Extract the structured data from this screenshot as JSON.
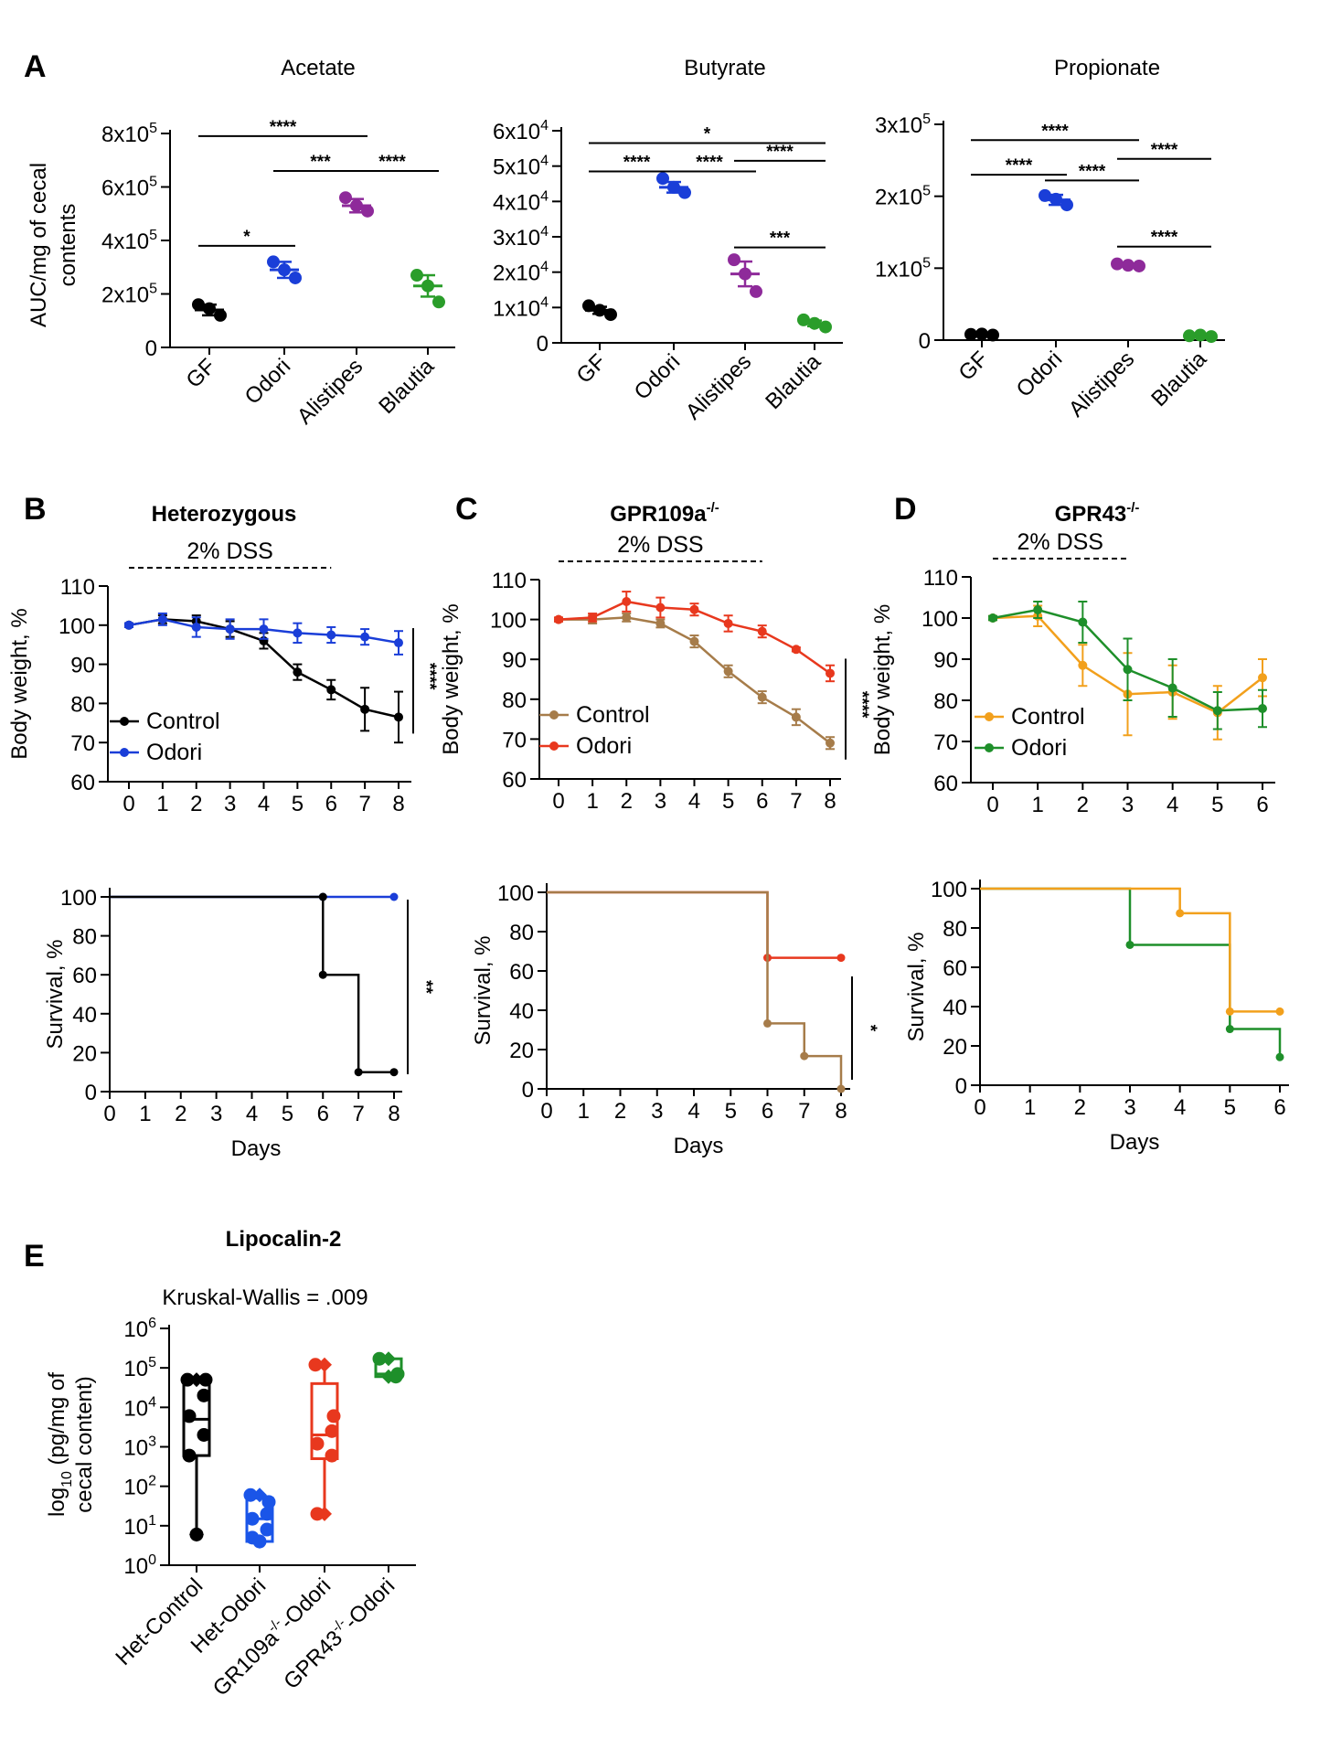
{
  "panels": {
    "A": {
      "letter": "A",
      "ylabel_lines": [
        "AUC/mg of cecal",
        "contents"
      ]
    },
    "B": {
      "letter": "B",
      "title_base": "Heterozygous",
      "title_sup": ""
    },
    "C": {
      "letter": "C",
      "title_base": "GPR109a",
      "title_sup": "-/-"
    },
    "D": {
      "letter": "D",
      "title_base": "GPR43",
      "title_sup": "-/-"
    },
    "E": {
      "letter": "E",
      "title": "Lipocalin-2",
      "subtitle": "Kruskal-Wallis = .009"
    }
  },
  "colors": {
    "gf": "#000000",
    "odori": "#1a3ed8",
    "alistipes": "#8e2a9a",
    "blautia": "#2a9d2a",
    "control_b": "#000000",
    "control_c": "#a67c4a",
    "odori_c": "#e8381e",
    "control_d": "#f2a01c",
    "odori_d": "#1e8f2a",
    "e_het_odori": "#1a55e8"
  },
  "chart_data": [
    {
      "id": "A-acetate",
      "type": "scatter",
      "title": "Acetate",
      "ylabel": "AUC/mg of cecal contents",
      "categories": [
        "GF",
        "Odori",
        "Alistipes",
        "Blautia"
      ],
      "ylim": [
        0,
        800000
      ],
      "yticks": [
        {
          "value": 0,
          "base": "0",
          "exp": ""
        },
        {
          "value": 200000,
          "base": "2x10",
          "exp": "5"
        },
        {
          "value": 400000,
          "base": "4x10",
          "exp": "5"
        },
        {
          "value": 600000,
          "base": "6x10",
          "exp": "5"
        },
        {
          "value": 800000,
          "base": "8x10",
          "exp": "5"
        }
      ],
      "points": [
        [
          160000,
          120000,
          145000
        ],
        [
          320000,
          260000,
          290000
        ],
        [
          560000,
          510000,
          530000
        ],
        [
          270000,
          170000,
          230000
        ]
      ],
      "means": [
        140000,
        290000,
        530000,
        230000
      ],
      "errors": [
        20000,
        30000,
        25000,
        40000
      ],
      "sig": [
        {
          "i": 0,
          "j": 2,
          "y": 790000,
          "label": "****"
        },
        {
          "i": 1,
          "j": 2,
          "y": 660000,
          "label": "***"
        },
        {
          "i": 2,
          "j": 3,
          "y": 660000,
          "label": "****"
        },
        {
          "i": 0,
          "j": 1,
          "y": 380000,
          "label": "*"
        }
      ]
    },
    {
      "id": "A-butyrate",
      "type": "scatter",
      "title": "Butyrate",
      "categories": [
        "GF",
        "Odori",
        "Alistipes",
        "Blautia"
      ],
      "ylim": [
        0,
        60000
      ],
      "yticks": [
        {
          "value": 0,
          "base": "0",
          "exp": ""
        },
        {
          "value": 10000,
          "base": "1x10",
          "exp": "4"
        },
        {
          "value": 20000,
          "base": "2x10",
          "exp": "4"
        },
        {
          "value": 30000,
          "base": "3x10",
          "exp": "4"
        },
        {
          "value": 40000,
          "base": "4x10",
          "exp": "4"
        },
        {
          "value": 50000,
          "base": "5x10",
          "exp": "4"
        },
        {
          "value": 60000,
          "base": "6x10",
          "exp": "4"
        }
      ],
      "points": [
        [
          10500,
          8000,
          9200
        ],
        [
          46500,
          42500,
          44000
        ],
        [
          23500,
          14500,
          19500
        ],
        [
          6500,
          4500,
          5500
        ]
      ],
      "means": [
        9200,
        44000,
        19500,
        5500
      ],
      "errors": [
        1000,
        1500,
        3500,
        800
      ],
      "sig": [
        {
          "i": 0,
          "j": 3,
          "y": 56500,
          "label": "*"
        },
        {
          "i": 2,
          "j": 3,
          "y": 51500,
          "label": "****"
        },
        {
          "i": 0,
          "j": 1,
          "y": 48500,
          "label": "****"
        },
        {
          "i": 1,
          "j": 2,
          "y": 48500,
          "label": "****"
        },
        {
          "i": 2,
          "j": 3,
          "y": 27000,
          "label": "***"
        }
      ]
    },
    {
      "id": "A-propionate",
      "type": "scatter",
      "title": "Propionate",
      "categories": [
        "GF",
        "Odori",
        "Alistipes",
        "Blautia"
      ],
      "ylim": [
        0,
        300000
      ],
      "yticks": [
        {
          "value": 0,
          "base": "0",
          "exp": ""
        },
        {
          "value": 100000,
          "base": "1x10",
          "exp": "5"
        },
        {
          "value": 200000,
          "base": "2x10",
          "exp": "5"
        },
        {
          "value": 300000,
          "base": "3x10",
          "exp": "5"
        }
      ],
      "points": [
        [
          8000,
          7000,
          8500
        ],
        [
          201000,
          188000,
          196000
        ],
        [
          106000,
          103000,
          104000
        ],
        [
          6000,
          5000,
          7000
        ]
      ],
      "means": [
        8000,
        195000,
        104000,
        6000
      ],
      "errors": [
        1000,
        7000,
        2000,
        1000
      ],
      "sig": [
        {
          "i": 0,
          "j": 2,
          "y": 278000,
          "label": "****"
        },
        {
          "i": 2,
          "j": 3,
          "y": 252000,
          "label": "****"
        },
        {
          "i": 0,
          "j": 1,
          "y": 230000,
          "label": "****"
        },
        {
          "i": 1,
          "j": 2,
          "y": 222000,
          "label": "****"
        },
        {
          "i": 2,
          "j": 3,
          "y": 130000,
          "label": "****"
        }
      ]
    },
    {
      "id": "B-weight",
      "type": "line",
      "xlabel": "",
      "ylabel": "Body weight, %",
      "x": [
        0,
        1,
        2,
        3,
        4,
        5,
        6,
        7,
        8
      ],
      "ylim": [
        60,
        110
      ],
      "yticks": [
        60,
        70,
        80,
        90,
        100,
        110
      ],
      "xticks": [
        "0",
        "1",
        "2",
        "3",
        "4",
        "5",
        "6",
        "7",
        "8"
      ],
      "dss_label": "2% DSS",
      "dss_range": [
        0,
        6
      ],
      "sig_label": "****",
      "series": [
        {
          "name": "Control",
          "values": [
            100,
            101.5,
            101,
            99,
            96,
            88,
            83.5,
            78.5,
            76.5
          ],
          "err": [
            0.5,
            1,
            1.5,
            2,
            2,
            2,
            2.5,
            5.5,
            6.5
          ]
        },
        {
          "name": "Odori",
          "values": [
            100,
            101.5,
            99.5,
            99,
            99,
            98,
            97.5,
            97,
            95.5
          ],
          "err": [
            0.5,
            1.5,
            2.5,
            2.5,
            2.5,
            2.5,
            2,
            2,
            3
          ]
        }
      ]
    },
    {
      "id": "C-weight",
      "type": "line",
      "xlabel": "",
      "ylabel": "Body weight, %",
      "x": [
        0,
        1,
        2,
        3,
        4,
        5,
        6,
        7,
        8
      ],
      "ylim": [
        60,
        110
      ],
      "yticks": [
        60,
        70,
        80,
        90,
        100,
        110
      ],
      "xticks": [
        "0",
        "1",
        "2",
        "3",
        "4",
        "5",
        "6",
        "7",
        "8"
      ],
      "dss_label": "2% DSS",
      "dss_range": [
        0,
        6
      ],
      "sig_label": "****",
      "series": [
        {
          "name": "Control",
          "values": [
            100,
            100,
            100.5,
            99,
            94.5,
            87,
            80.5,
            75.5,
            69
          ],
          "err": [
            0.5,
            1,
            1,
            1,
            1.5,
            1.5,
            1.5,
            2,
            1.5
          ]
        },
        {
          "name": "Odori",
          "values": [
            100,
            100.5,
            104.5,
            103,
            102.5,
            99,
            97,
            92.5,
            86.5
          ],
          "err": [
            0.5,
            1,
            2.5,
            2.5,
            1.5,
            2,
            1.5,
            0.5,
            2
          ]
        }
      ]
    },
    {
      "id": "D-weight",
      "type": "line",
      "xlabel": "",
      "ylabel": "Body weight, %",
      "x": [
        0,
        1,
        2,
        3,
        4,
        5,
        6
      ],
      "ylim": [
        60,
        110
      ],
      "yticks": [
        60,
        70,
        80,
        90,
        100,
        110
      ],
      "xticks": [
        "0",
        "1",
        "2",
        "3",
        "4",
        "5",
        "6"
      ],
      "dss_label": "2% DSS",
      "dss_range": [
        0,
        3
      ],
      "sig_label": "",
      "series": [
        {
          "name": "Control",
          "values": [
            100,
            100.5,
            88.5,
            81.5,
            82,
            77,
            85.5
          ],
          "err": [
            0.5,
            2.5,
            5,
            10,
            6.5,
            6.5,
            4.5
          ]
        },
        {
          "name": "Odori",
          "values": [
            100,
            102,
            99,
            87.5,
            83,
            77.5,
            78
          ],
          "err": [
            0.5,
            2,
            5,
            7.5,
            7,
            4.5,
            4.5
          ]
        }
      ]
    },
    {
      "id": "B-survival",
      "type": "line",
      "xlabel": "Days",
      "ylabel": "Survival, %",
      "xlim": [
        0,
        8
      ],
      "ylim": [
        0,
        100
      ],
      "yticks": [
        0,
        20,
        40,
        60,
        80,
        100
      ],
      "xticks": [
        "0",
        "1",
        "2",
        "3",
        "4",
        "5",
        "6",
        "7",
        "8"
      ],
      "sig_label": "**",
      "series": [
        {
          "name": "Control",
          "steps": [
            [
              0,
              100
            ],
            [
              6,
              60
            ],
            [
              7,
              10
            ],
            [
              8,
              10
            ]
          ],
          "markers": [
            [
              6,
              100
            ],
            [
              6,
              60
            ],
            [
              7,
              10
            ],
            [
              8,
              10
            ]
          ]
        },
        {
          "name": "Odori",
          "steps": [
            [
              0,
              100
            ],
            [
              8,
              100
            ]
          ],
          "markers": [
            [
              6,
              100
            ],
            [
              8,
              100
            ]
          ]
        }
      ]
    },
    {
      "id": "C-survival",
      "type": "line",
      "xlabel": "Days",
      "ylabel": "Survival, %",
      "xlim": [
        0,
        8
      ],
      "ylim": [
        0,
        100
      ],
      "yticks": [
        0,
        20,
        40,
        60,
        80,
        100
      ],
      "xticks": [
        "0",
        "1",
        "2",
        "3",
        "4",
        "5",
        "6",
        "7",
        "8"
      ],
      "sig_label": "*",
      "series": [
        {
          "name": "Control",
          "steps": [
            [
              0,
              100
            ],
            [
              6,
              33.3
            ],
            [
              7,
              16.7
            ],
            [
              8,
              0
            ]
          ],
          "markers": [
            [
              6,
              33.3
            ],
            [
              7,
              16.7
            ],
            [
              8,
              0
            ]
          ]
        },
        {
          "name": "Odori",
          "steps": [
            [
              0,
              100
            ],
            [
              6,
              66.7
            ],
            [
              8,
              66.7
            ]
          ],
          "markers": [
            [
              6,
              66.7
            ],
            [
              8,
              66.7
            ]
          ]
        }
      ]
    },
    {
      "id": "D-survival",
      "type": "line",
      "xlabel": "Days",
      "ylabel": "Survival, %",
      "xlim": [
        0,
        6
      ],
      "ylim": [
        0,
        100
      ],
      "yticks": [
        0,
        20,
        40,
        60,
        80,
        100
      ],
      "xticks": [
        "0",
        "1",
        "2",
        "3",
        "4",
        "5",
        "6"
      ],
      "sig_label": "",
      "series": [
        {
          "name": "Control",
          "steps": [
            [
              0,
              100
            ],
            [
              4,
              87.5
            ],
            [
              5,
              37.5
            ],
            [
              6,
              37.5
            ]
          ],
          "markers": [
            [
              4,
              87.5
            ],
            [
              5,
              37.5
            ],
            [
              6,
              37.5
            ]
          ]
        },
        {
          "name": "Odori",
          "steps": [
            [
              0,
              100
            ],
            [
              3,
              71.4
            ],
            [
              5,
              28.6
            ],
            [
              6,
              14.3
            ]
          ],
          "markers": [
            [
              3,
              71.4
            ],
            [
              5,
              28.6
            ],
            [
              6,
              14.3
            ]
          ]
        }
      ]
    },
    {
      "id": "E-lipocalin",
      "type": "scatter",
      "ylabel": "log10 (pg/mg of cecal content)",
      "log_scale": true,
      "ylim": [
        1,
        1000000
      ],
      "yticks": [
        {
          "base": "10",
          "exp": "0"
        },
        {
          "base": "10",
          "exp": "1"
        },
        {
          "base": "10",
          "exp": "2"
        },
        {
          "base": "10",
          "exp": "3"
        },
        {
          "base": "10",
          "exp": "4"
        },
        {
          "base": "10",
          "exp": "5"
        },
        {
          "base": "10",
          "exp": "6"
        }
      ],
      "categories": [
        {
          "base": "Het-Control",
          "sup": "",
          "suffix": ""
        },
        {
          "base": "Het-Odori",
          "sup": "",
          "suffix": ""
        },
        {
          "base": "GR109a",
          "sup": "-/-",
          "suffix": "-Odori"
        },
        {
          "base": "GPR43",
          "sup": "-/-",
          "suffix": "-Odori"
        }
      ],
      "boxes": [
        {
          "min": 6,
          "q1": 600,
          "median": 5000,
          "q3": 50000,
          "max": 50000,
          "points": [
            50000,
            50000,
            20000,
            6000,
            2000,
            600,
            6
          ]
        },
        {
          "min": 4,
          "q1": 4,
          "median": 15,
          "q3": 50,
          "max": 60,
          "points": [
            60,
            40,
            20,
            15,
            8,
            5,
            4
          ]
        },
        {
          "min": 20,
          "q1": 500,
          "median": 2000,
          "q3": 40000,
          "max": 120000,
          "points": [
            120000,
            6000,
            2500,
            1200,
            600,
            20
          ]
        },
        {
          "min": 60000,
          "q1": 60000,
          "median": 70000,
          "q3": 170000,
          "max": 170000,
          "points": [
            170000,
            70000,
            60000
          ]
        }
      ]
    }
  ]
}
